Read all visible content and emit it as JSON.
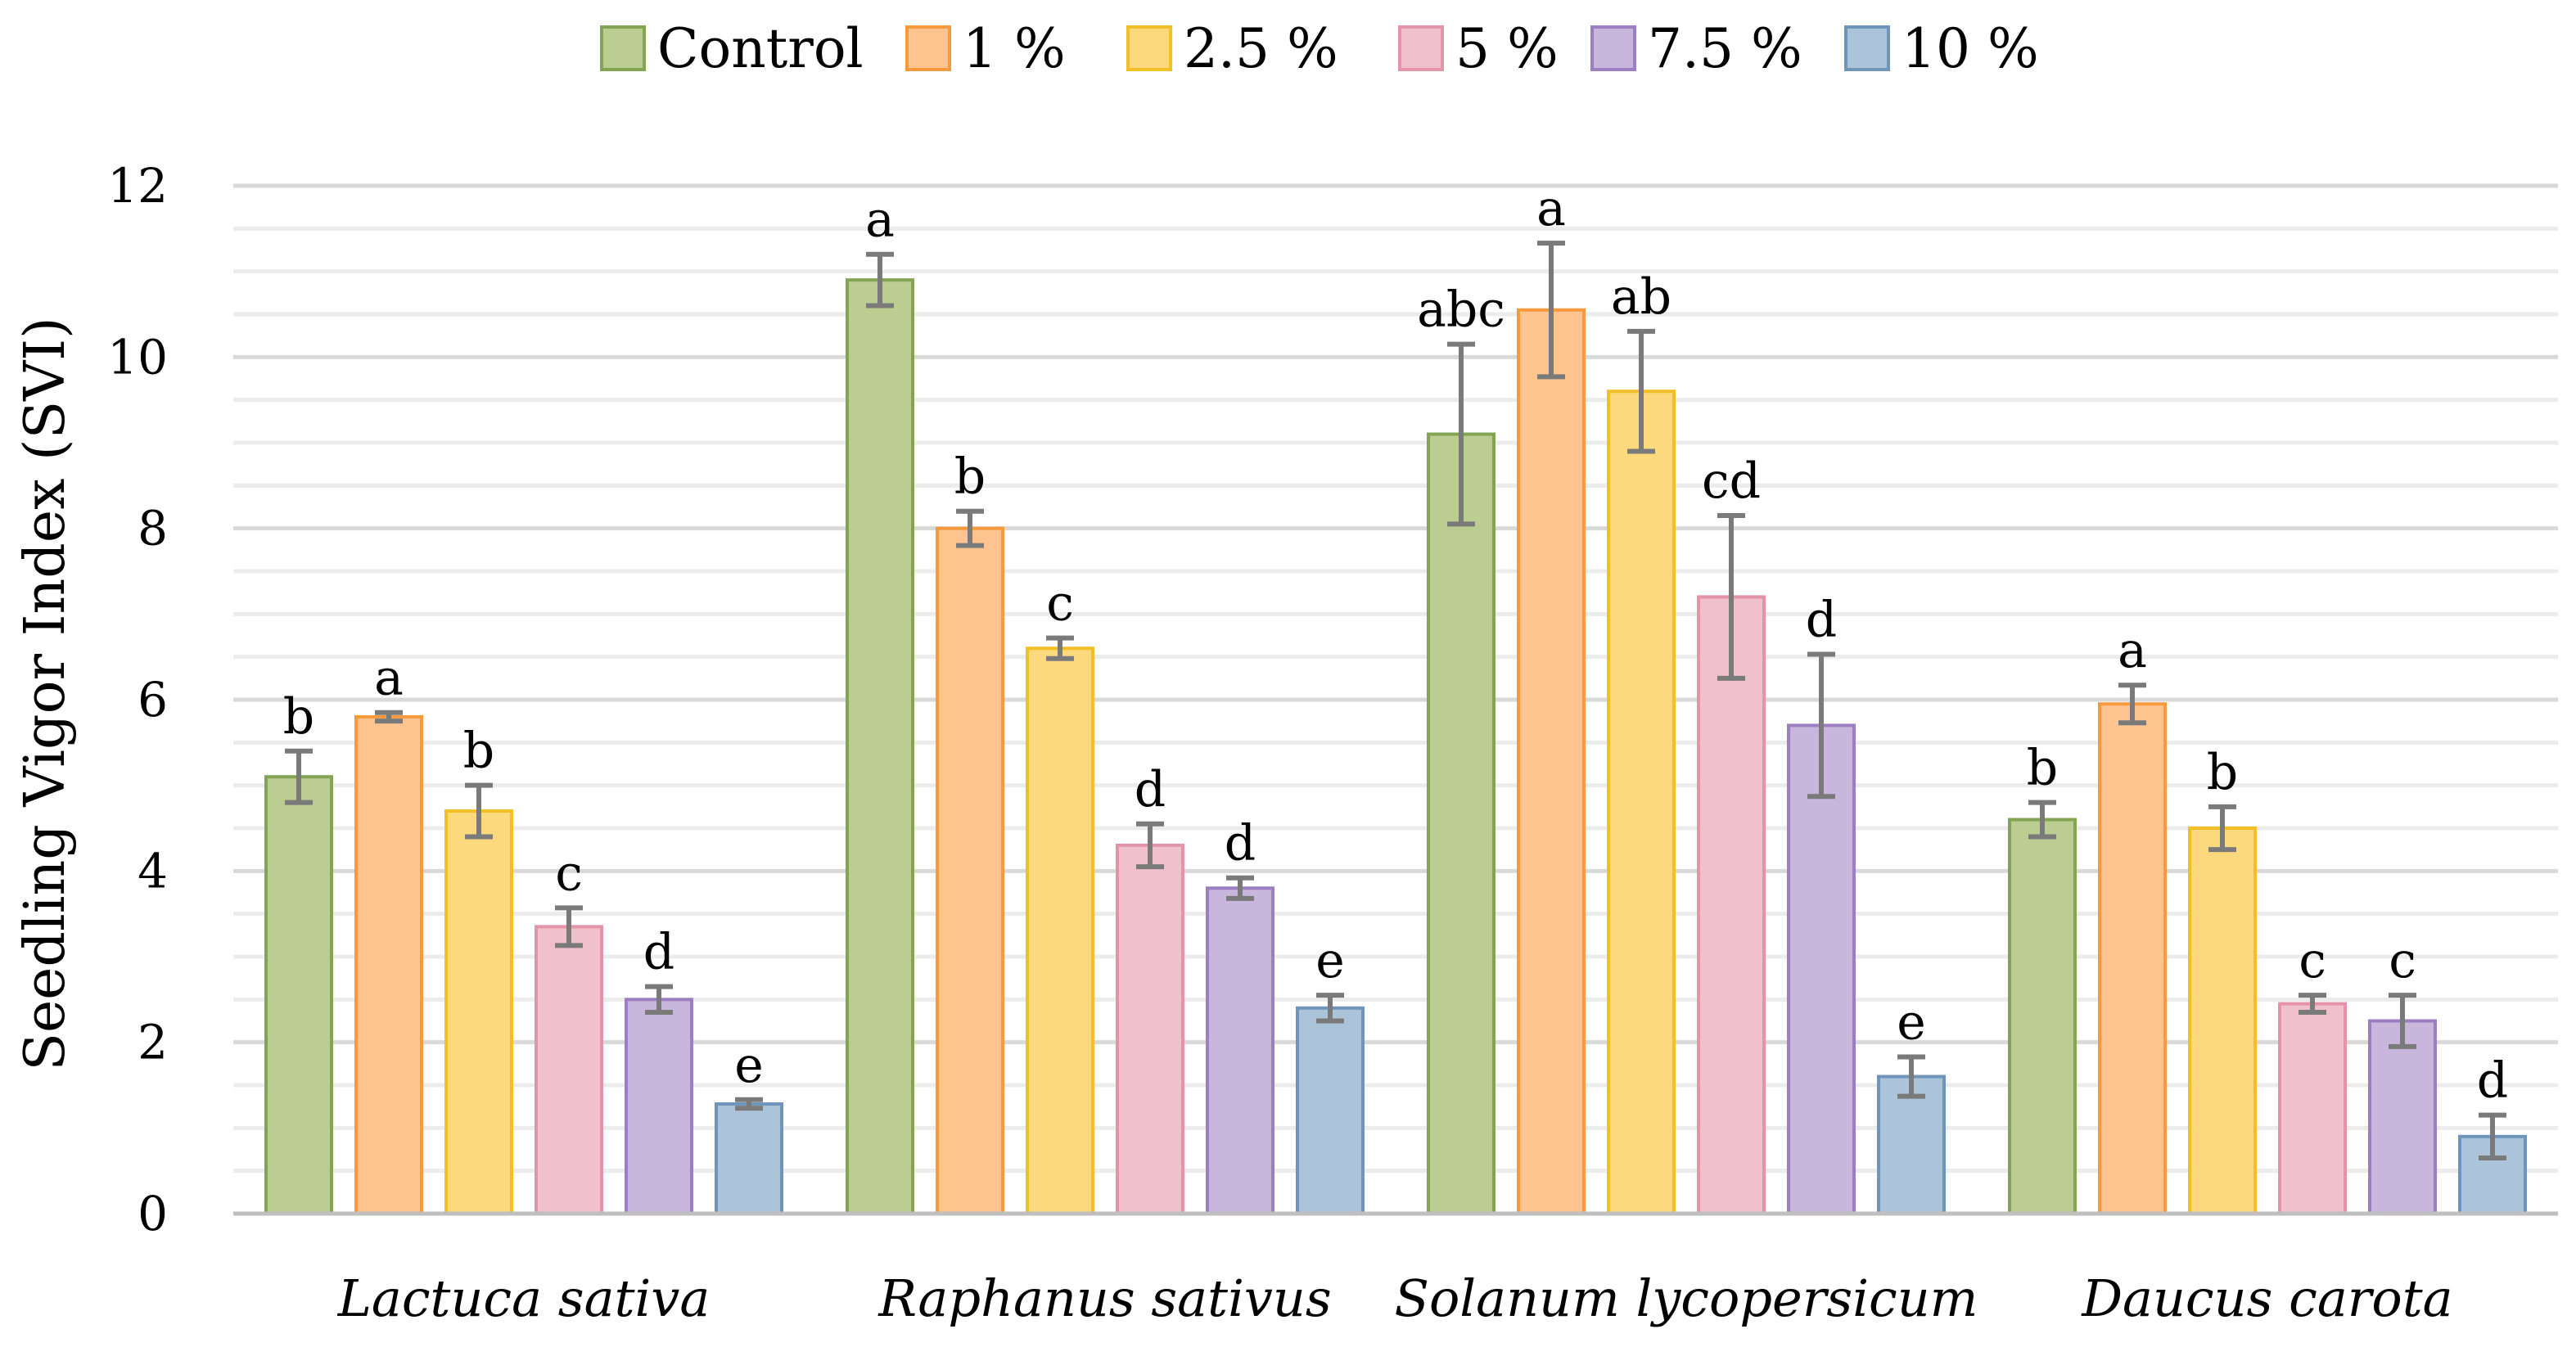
{
  "chart_data": {
    "type": "bar",
    "title": "",
    "xlabel": "",
    "ylabel": "Seedling Vigor Index (SVI)",
    "ylim": [
      0,
      12
    ],
    "y_major_ticks": [
      0,
      2,
      4,
      6,
      8,
      10,
      12
    ],
    "y_minor_step": 0.5,
    "legend_position": "top-center",
    "categories": [
      "Lactuca sativa",
      "Raphanus sativus",
      "Solanum lycopersicum",
      "Daucus carota"
    ],
    "series": [
      {
        "name": "Control",
        "fill": "#bccd92",
        "stroke": "#82a454",
        "values": [
          5.1,
          10.9,
          9.1,
          4.6
        ],
        "errors": [
          0.3,
          0.3,
          1.05,
          0.2
        ],
        "labels": [
          "b",
          "a",
          "abc",
          "b"
        ]
      },
      {
        "name": "1 %",
        "fill": "#fdc490",
        "stroke": "#f79a3d",
        "values": [
          5.8,
          8.0,
          10.55,
          5.95
        ],
        "errors": [
          0.05,
          0.2,
          0.78,
          0.22
        ],
        "labels": [
          "a",
          "b",
          "a",
          "a"
        ]
      },
      {
        "name": "2.5 %",
        "fill": "#fcd97c",
        "stroke": "#f3bf27",
        "values": [
          4.7,
          6.6,
          9.6,
          4.5
        ],
        "errors": [
          0.3,
          0.12,
          0.7,
          0.25
        ],
        "labels": [
          "b",
          "c",
          "ab",
          "b"
        ]
      },
      {
        "name": "5 %",
        "fill": "#f0c0cd",
        "stroke": "#e394a8",
        "values": [
          3.35,
          4.3,
          7.2,
          2.45
        ],
        "errors": [
          0.22,
          0.25,
          0.95,
          0.1
        ],
        "labels": [
          "c",
          "d",
          "cd",
          "c"
        ]
      },
      {
        "name": "7.5 %",
        "fill": "#c9b6dc",
        "stroke": "#9b7fc0",
        "values": [
          2.5,
          3.8,
          5.7,
          2.25
        ],
        "errors": [
          0.15,
          0.12,
          0.83,
          0.3
        ],
        "labels": [
          "d",
          "d",
          "d",
          "c"
        ]
      },
      {
        "name": "10 %",
        "fill": "#acc4da",
        "stroke": "#6f95bb",
        "values": [
          1.28,
          2.4,
          1.6,
          0.9
        ],
        "errors": [
          0.05,
          0.15,
          0.23,
          0.25
        ],
        "labels": [
          "e",
          "e",
          "e",
          "d"
        ]
      }
    ]
  }
}
